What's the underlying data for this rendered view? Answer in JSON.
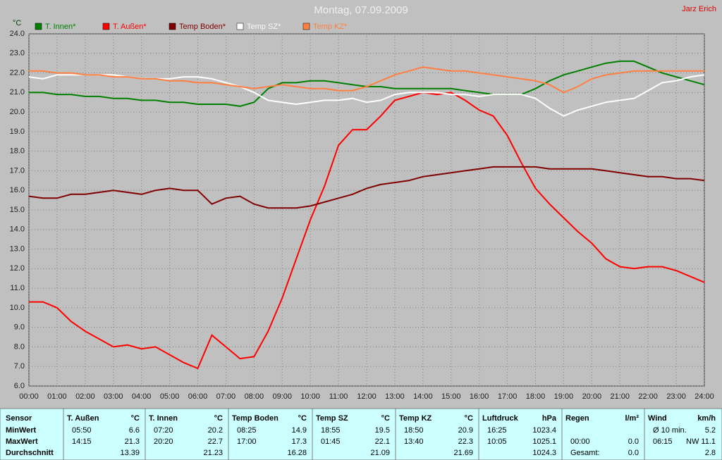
{
  "chart_data": {
    "type": "line",
    "title": "Montag, 07.09.2009",
    "author": "Jarz Erich",
    "y_unit": "°C",
    "x": [
      0,
      0.5,
      1,
      1.5,
      2,
      2.5,
      3,
      3.5,
      4,
      4.5,
      5,
      5.5,
      6,
      6.5,
      7,
      7.5,
      8,
      8.5,
      9,
      9.5,
      10,
      10.5,
      11,
      11.5,
      12,
      12.5,
      13,
      13.5,
      14,
      14.5,
      15,
      15.5,
      16,
      16.5,
      17,
      17.5,
      18,
      18.5,
      19,
      19.5,
      20,
      20.5,
      21,
      21.5,
      22,
      22.5,
      23,
      23.5,
      24
    ],
    "series": [
      {
        "name": "T. Innen*",
        "color": "#008000",
        "values": [
          21.0,
          21.0,
          20.9,
          20.9,
          20.8,
          20.8,
          20.7,
          20.7,
          20.6,
          20.6,
          20.5,
          20.5,
          20.4,
          20.4,
          20.4,
          20.3,
          20.5,
          21.2,
          21.5,
          21.5,
          21.6,
          21.6,
          21.5,
          21.4,
          21.3,
          21.3,
          21.2,
          21.2,
          21.2,
          21.2,
          21.2,
          21.1,
          21.0,
          20.9,
          20.9,
          20.9,
          21.2,
          21.6,
          21.9,
          22.1,
          22.3,
          22.5,
          22.6,
          22.6,
          22.3,
          22.0,
          21.8,
          21.6,
          21.4
        ]
      },
      {
        "name": "T. Außen*",
        "color": "#ff0000",
        "values": [
          10.3,
          10.3,
          10.0,
          9.3,
          8.8,
          8.4,
          8.0,
          8.1,
          7.9,
          8.0,
          7.6,
          7.2,
          6.9,
          8.6,
          8.0,
          7.4,
          7.5,
          8.8,
          10.5,
          12.5,
          14.5,
          16.2,
          18.3,
          19.1,
          19.1,
          19.8,
          20.6,
          20.8,
          21.0,
          20.9,
          21.0,
          20.6,
          20.1,
          19.8,
          18.8,
          17.4,
          16.1,
          15.3,
          14.6,
          13.9,
          13.3,
          12.5,
          12.1,
          12.0,
          12.1,
          12.1,
          11.9,
          11.6,
          11.3
        ]
      },
      {
        "name": "Temp Boden*",
        "color": "#800000",
        "values": [
          15.7,
          15.6,
          15.6,
          15.8,
          15.8,
          15.9,
          16.0,
          15.9,
          15.8,
          16.0,
          16.1,
          16.0,
          16.0,
          15.3,
          15.6,
          15.7,
          15.3,
          15.1,
          15.1,
          15.1,
          15.2,
          15.4,
          15.6,
          15.8,
          16.1,
          16.3,
          16.4,
          16.5,
          16.7,
          16.8,
          16.9,
          17.0,
          17.1,
          17.2,
          17.2,
          17.2,
          17.2,
          17.1,
          17.1,
          17.1,
          17.1,
          17.0,
          16.9,
          16.8,
          16.7,
          16.7,
          16.6,
          16.6,
          16.5
        ]
      },
      {
        "name": "Temp SZ*",
        "color": "#ffffff",
        "values": [
          21.8,
          21.7,
          21.9,
          21.9,
          21.9,
          21.9,
          21.9,
          21.8,
          21.7,
          21.7,
          21.7,
          21.8,
          21.8,
          21.7,
          21.5,
          21.3,
          21.0,
          20.6,
          20.5,
          20.4,
          20.5,
          20.6,
          20.6,
          20.7,
          20.5,
          20.6,
          20.9,
          21.0,
          21.0,
          21.0,
          20.9,
          20.9,
          20.8,
          20.9,
          20.9,
          20.9,
          20.7,
          20.2,
          19.8,
          20.1,
          20.3,
          20.5,
          20.6,
          20.7,
          21.1,
          21.5,
          21.6,
          21.8,
          21.9
        ]
      },
      {
        "name": "Temp KZ*",
        "color": "#ff8040",
        "values": [
          22.1,
          22.1,
          22.0,
          22.0,
          21.9,
          21.9,
          21.8,
          21.8,
          21.7,
          21.7,
          21.6,
          21.6,
          21.5,
          21.5,
          21.4,
          21.3,
          21.2,
          21.3,
          21.4,
          21.3,
          21.2,
          21.2,
          21.1,
          21.1,
          21.3,
          21.6,
          21.9,
          22.1,
          22.3,
          22.2,
          22.1,
          22.1,
          22.0,
          21.9,
          21.8,
          21.7,
          21.6,
          21.4,
          21.0,
          21.3,
          21.7,
          21.9,
          22.0,
          22.1,
          22.1,
          22.1,
          22.1,
          22.1,
          22.1
        ]
      }
    ],
    "xlim": [
      0,
      24
    ],
    "xticks": [
      {
        "value": 0,
        "label": "00:00"
      },
      {
        "value": 1,
        "label": "01:00"
      },
      {
        "value": 2,
        "label": "02:00"
      },
      {
        "value": 3,
        "label": "03:00"
      },
      {
        "value": 4,
        "label": "04:00"
      },
      {
        "value": 5,
        "label": "05:00"
      },
      {
        "value": 6,
        "label": "06:00"
      },
      {
        "value": 7,
        "label": "07:00"
      },
      {
        "value": 8,
        "label": "08:00"
      },
      {
        "value": 9,
        "label": "09:00"
      },
      {
        "value": 10,
        "label": "10:00"
      },
      {
        "value": 11,
        "label": "11:00"
      },
      {
        "value": 12,
        "label": "12:00"
      },
      {
        "value": 13,
        "label": "13:00"
      },
      {
        "value": 14,
        "label": "14:00"
      },
      {
        "value": 15,
        "label": "15:00"
      },
      {
        "value": 16,
        "label": "16:00"
      },
      {
        "value": 17,
        "label": "17:00"
      },
      {
        "value": 18,
        "label": "18:00"
      },
      {
        "value": 19,
        "label": "19:00"
      },
      {
        "value": 20,
        "label": "20:00"
      },
      {
        "value": 21,
        "label": "21:00"
      },
      {
        "value": 22,
        "label": "22:00"
      },
      {
        "value": 23,
        "label": "23:00"
      },
      {
        "value": 24,
        "label": "24:00"
      }
    ],
    "ylim": [
      6,
      24
    ],
    "yticks": [
      {
        "value": 6,
        "label": "6.0"
      },
      {
        "value": 7,
        "label": "7.0"
      },
      {
        "value": 8,
        "label": "8.0"
      },
      {
        "value": 9,
        "label": "9.0"
      },
      {
        "value": 10,
        "label": "10.0"
      },
      {
        "value": 11,
        "label": "11.0"
      },
      {
        "value": 12,
        "label": "12.0"
      },
      {
        "value": 13,
        "label": "13.0"
      },
      {
        "value": 14,
        "label": "14.0"
      },
      {
        "value": 15,
        "label": "15.0"
      },
      {
        "value": 16,
        "label": "16.0"
      },
      {
        "value": 17,
        "label": "17.0"
      },
      {
        "value": 18,
        "label": "18.0"
      },
      {
        "value": 19,
        "label": "19.0"
      },
      {
        "value": 20,
        "label": "20.0"
      },
      {
        "value": 21,
        "label": "21.0"
      },
      {
        "value": 22,
        "label": "22.0"
      },
      {
        "value": 23,
        "label": "23.0"
      },
      {
        "value": 24,
        "label": "24.0"
      }
    ],
    "grid": true
  },
  "table": {
    "label_header": "Sensor",
    "row_labels": [
      "MinWert",
      "MaxWert",
      "Durchschnitt"
    ],
    "sensors": [
      {
        "name": "T. Außen",
        "unit": "°C",
        "rows": [
          [
            "05:50",
            "6.6"
          ],
          [
            "14:15",
            "21.3"
          ],
          [
            null,
            "13.39"
          ]
        ]
      },
      {
        "name": "T. Innen",
        "unit": "°C",
        "rows": [
          [
            "07:20",
            "20.2"
          ],
          [
            "20:20",
            "22.7"
          ],
          [
            null,
            "21.23"
          ]
        ]
      },
      {
        "name": "Temp Boden",
        "unit": "°C",
        "rows": [
          [
            "08:25",
            "14.9"
          ],
          [
            "17:00",
            "17.3"
          ],
          [
            null,
            "16.28"
          ]
        ]
      },
      {
        "name": "Temp SZ",
        "unit": "°C",
        "rows": [
          [
            "18:55",
            "19.5"
          ],
          [
            "01:45",
            "22.1"
          ],
          [
            null,
            "21.09"
          ]
        ]
      },
      {
        "name": "Temp KZ",
        "unit": "°C",
        "rows": [
          [
            "18:50",
            "20.9"
          ],
          [
            "13:40",
            "22.3"
          ],
          [
            null,
            "21.69"
          ]
        ]
      },
      {
        "name": "Luftdruck",
        "unit": "hPa",
        "rows": [
          [
            "16:25",
            "1023.4"
          ],
          [
            "10:05",
            "1025.1"
          ],
          [
            null,
            "1024.3"
          ]
        ]
      },
      {
        "name": "Regen",
        "unit": "l/m²",
        "rows": [
          [
            null,
            null
          ],
          [
            "00:00",
            "0.0"
          ],
          [
            "Gesamt:",
            "0.0"
          ]
        ]
      },
      {
        "name": "Wind",
        "unit": "km/h",
        "rows": [
          [
            "Ø 10 min.",
            "5.2"
          ],
          [
            "06:15",
            "NW 11.1"
          ],
          [
            null,
            "2.8"
          ]
        ]
      }
    ]
  }
}
